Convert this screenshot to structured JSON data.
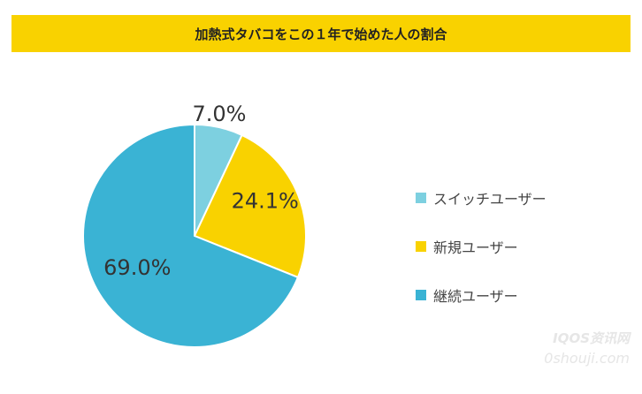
{
  "chart_data": {
    "type": "pie",
    "title": "加熱式タバコをこの１年で始めた人の割合",
    "slices": [
      {
        "name": "スイッチユーザー",
        "value": 7.0,
        "label": "7.0%",
        "color": "#7dd0e0"
      },
      {
        "name": "新規ユーザー",
        "value": 24.1,
        "label": "24.1%",
        "color": "#f9d200"
      },
      {
        "name": "継続ユーザー",
        "value": 69.0,
        "label": "69.0%",
        "color": "#3ab3d4"
      }
    ],
    "legend_position": "right"
  },
  "watermark": {
    "line1": "IQOS资讯网",
    "line2": "0shouji.com"
  }
}
